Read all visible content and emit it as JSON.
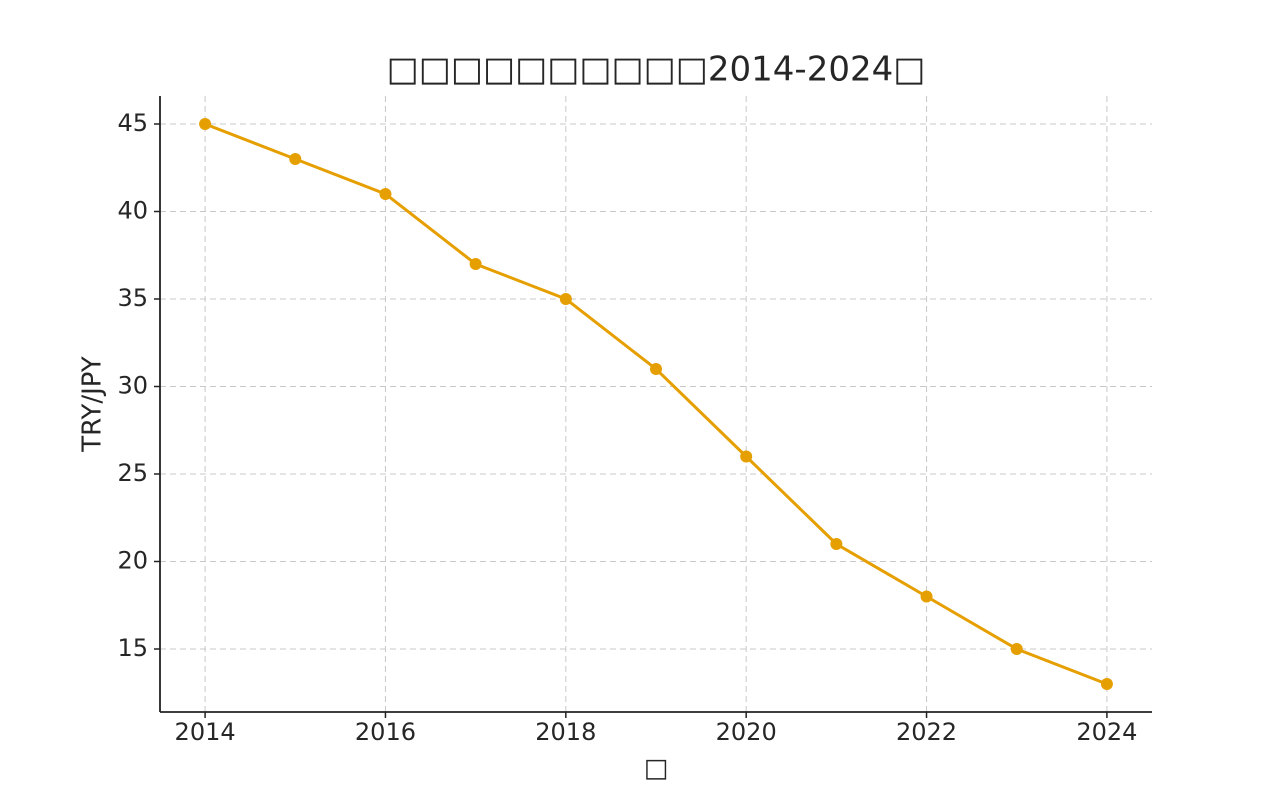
{
  "chart_data": {
    "type": "line",
    "title": "□□□□□□□□□□2014-2024□",
    "x_label": "□",
    "y_label": "TRY/JPY",
    "x": [
      2014,
      2015,
      2016,
      2017,
      2018,
      2019,
      2020,
      2021,
      2022,
      2023,
      2024
    ],
    "series": [
      {
        "name": "TRY/JPY",
        "color": "#e69f00",
        "values": [
          45,
          43,
          41,
          37,
          35,
          31,
          26,
          21,
          18,
          15,
          13
        ]
      }
    ],
    "xlim": [
      2013.5,
      2024.5
    ],
    "xticks": [
      2014,
      2016,
      2018,
      2020,
      2022,
      2024
    ],
    "ylim": [
      11.4,
      46.6
    ],
    "yticks": [
      15,
      20,
      25,
      30,
      35,
      40,
      45
    ],
    "grid": true
  }
}
